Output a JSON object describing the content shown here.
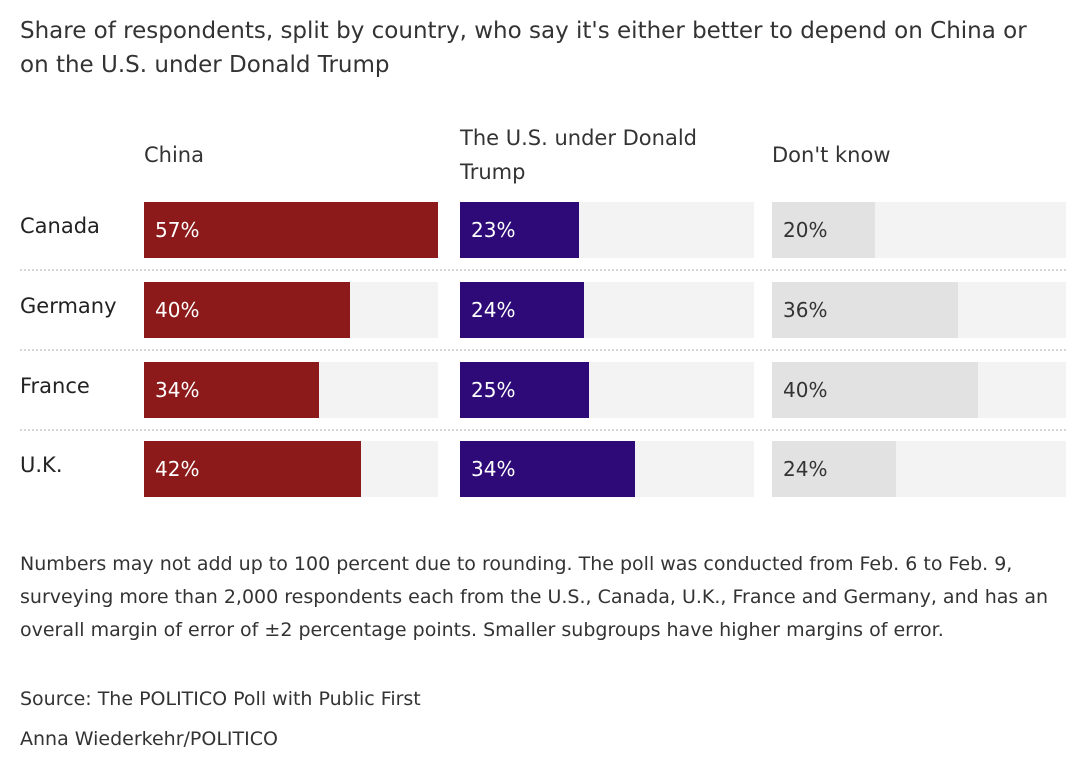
{
  "title": "Share of respondents, split by country, who say it's either better to depend on China or on the U.S. under Donald Trump",
  "chart_data": {
    "type": "bar",
    "orientation": "horizontal",
    "title": "Share of respondents, split by country, who say it's either better to depend on China or on the U.S. under Donald Trump",
    "categories": [
      "Canada",
      "Germany",
      "France",
      "U.K."
    ],
    "series": [
      {
        "name": "China",
        "values": [
          57,
          40,
          34,
          42
        ],
        "color": "#8c1a1a"
      },
      {
        "name": "The U.S. under Donald Trump",
        "values": [
          23,
          24,
          25,
          34
        ],
        "color": "#2d0a78"
      },
      {
        "name": "Don't know",
        "values": [
          20,
          36,
          40,
          24
        ],
        "color": "#e2e2e2"
      }
    ],
    "unit": "%",
    "xlim": [
      0,
      57
    ]
  },
  "notes": "Numbers may not add up to 100 percent due to rounding. The poll was conducted from Feb. 6 to Feb. 9, surveying more than 2,000 respondents each from the U.S., Canada, U.K., France and Germany, and has an overall margin of error of ±2 percentage points. Smaller subgroups have higher margins of error.",
  "source": "Source: The POLITICO Poll with Public First",
  "credit": "Anna Wiederkehr/POLITICO"
}
